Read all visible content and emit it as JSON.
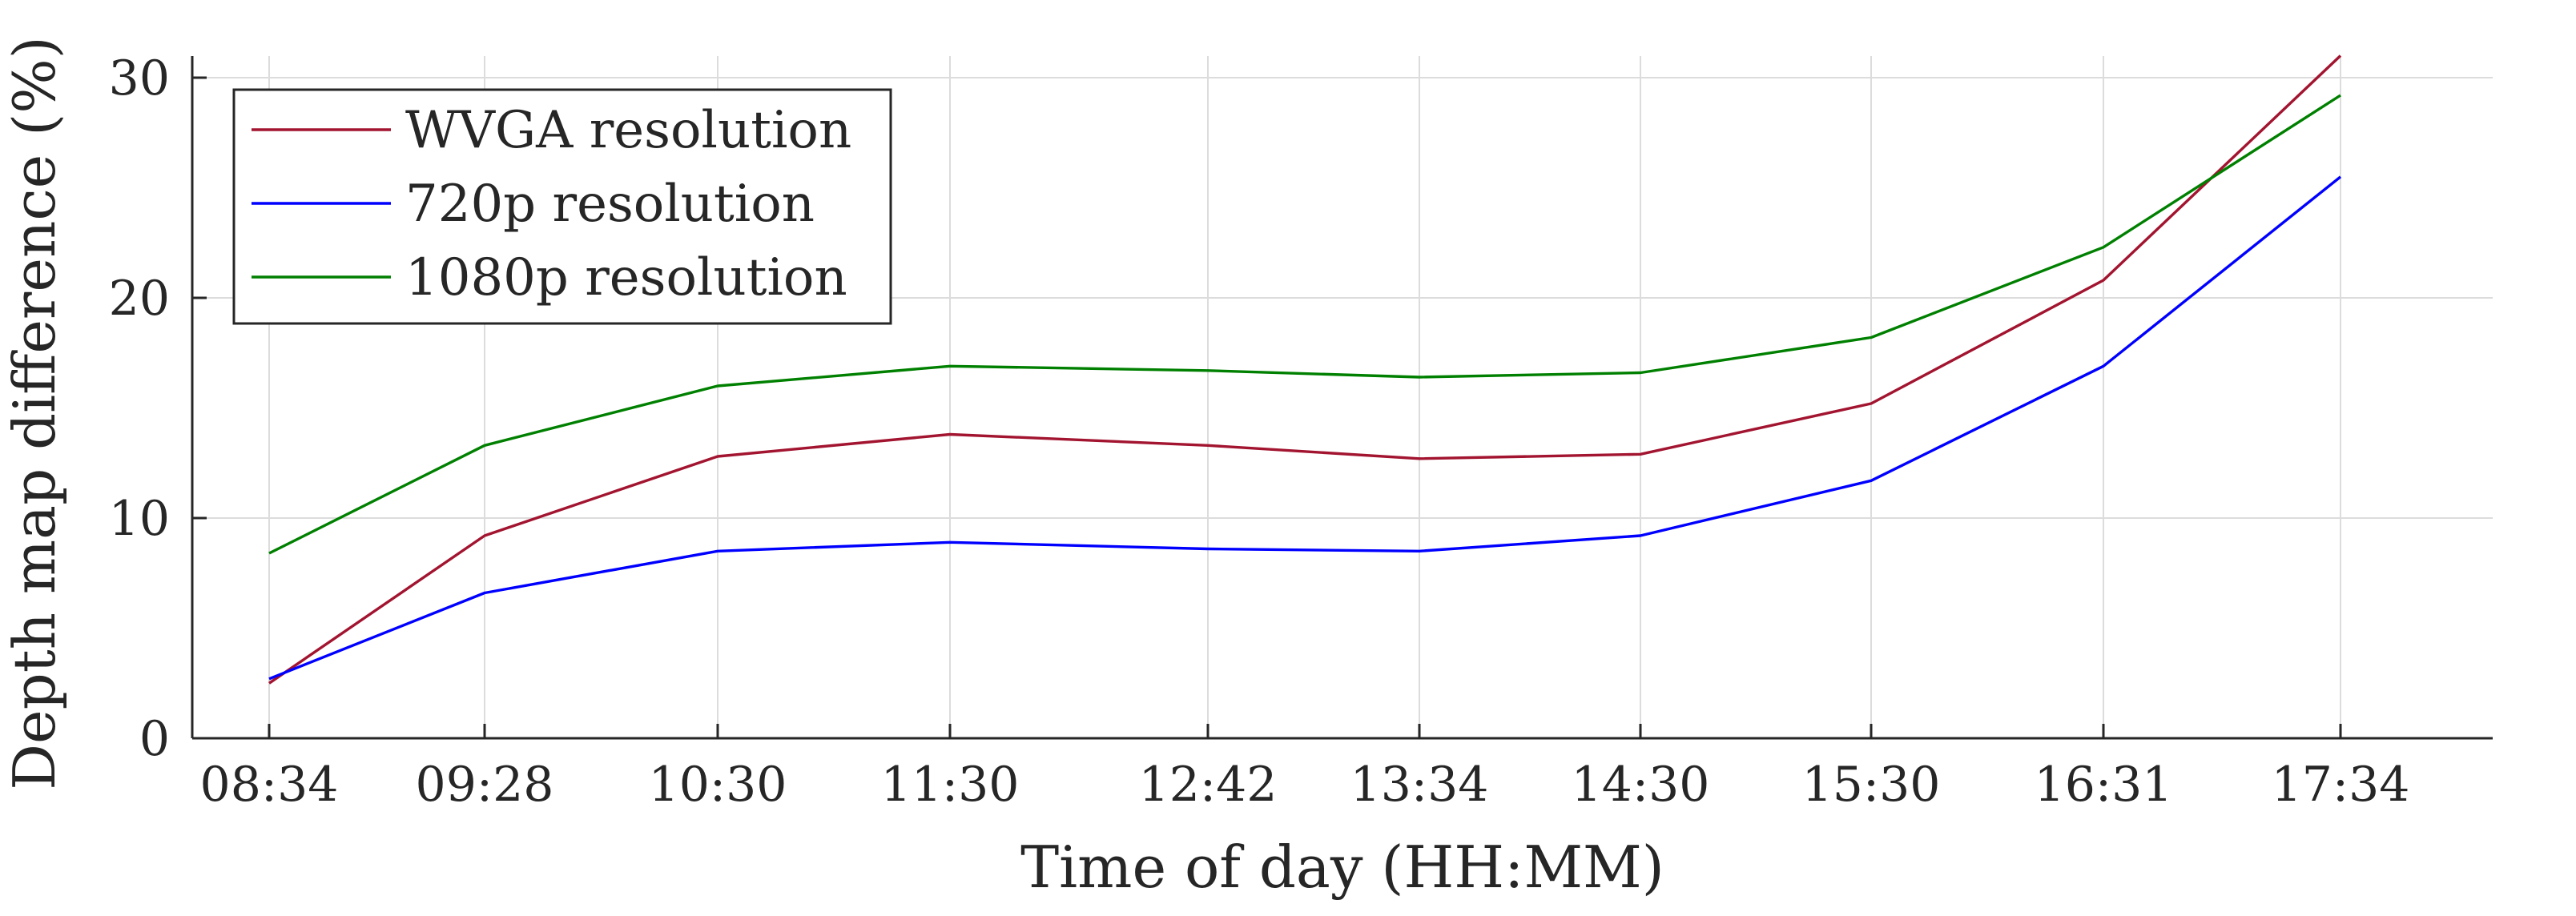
{
  "chart_data": {
    "type": "line",
    "xlabel": "Time of day (HH:MM)",
    "ylabel": "Depth map difference (%)",
    "x": [
      "08:34",
      "09:28",
      "10:30",
      "11:30",
      "12:42",
      "13:34",
      "14:30",
      "15:30",
      "16:31",
      "17:34"
    ],
    "ylim": [
      0,
      30
    ],
    "yticks": [
      0,
      10,
      20,
      30
    ],
    "grid": true,
    "legend_position": "top-left",
    "series": [
      {
        "name": "WVGA resolution",
        "color": "#a2142f",
        "values": [
          2.5,
          9.2,
          12.8,
          13.8,
          13.3,
          12.7,
          12.9,
          15.2,
          20.8,
          31.0
        ]
      },
      {
        "name": "720p resolution",
        "color": "#0000ff",
        "values": [
          2.7,
          6.6,
          8.5,
          8.9,
          8.6,
          8.5,
          9.2,
          11.7,
          16.9,
          25.5
        ]
      },
      {
        "name": "1080p resolution",
        "color": "#008000",
        "values": [
          8.4,
          13.3,
          16.0,
          16.9,
          16.7,
          16.4,
          16.6,
          18.2,
          22.3,
          29.2
        ]
      }
    ]
  }
}
